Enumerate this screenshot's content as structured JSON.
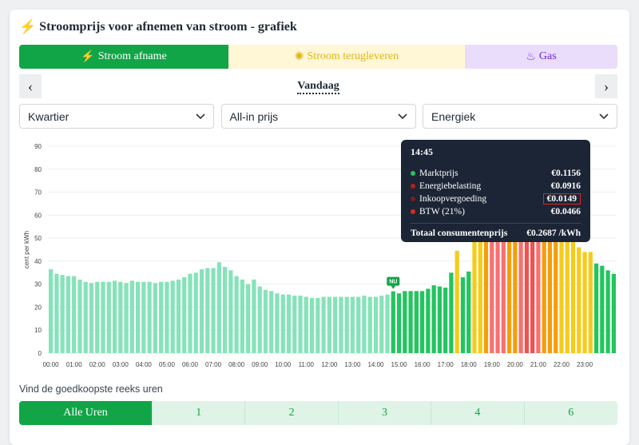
{
  "title": "Stroomprijs voor afnemen van stroom - grafiek",
  "tabs": [
    {
      "label": "Stroom afname",
      "icon": "bolt-icon"
    },
    {
      "label": "Stroom terugleveren",
      "icon": "sun-icon"
    },
    {
      "label": "Gas",
      "icon": "flame-icon"
    }
  ],
  "date_nav": {
    "label": "Vandaag",
    "prev": "‹",
    "next": "›"
  },
  "selects": [
    {
      "value": "Kwartier"
    },
    {
      "value": "All-in prijs"
    },
    {
      "value": "Energiek"
    }
  ],
  "tooltip": {
    "time": "14:45",
    "rows": [
      {
        "name": "Marktprijs",
        "value": "€0.1156",
        "color": "#22c55e"
      },
      {
        "name": "Energiebelasting",
        "value": "€0.0916",
        "color": "#b91c1c"
      },
      {
        "name": "Inkoopvergoeding",
        "value": "€0.0149",
        "color": "#7f1d1d"
      },
      {
        "name": "BTW (21%)",
        "value": "€0.0466",
        "color": "#dc2626"
      }
    ],
    "total_label": "Totaal consumentenprijs",
    "total_value": "€0.2687 /kWh"
  },
  "now_marker": "NU",
  "cheap_label": "Vind de goedkoopste reeks uren",
  "hour_buttons": [
    "Alle Uren",
    "1",
    "2",
    "3",
    "4",
    "6"
  ],
  "chart_data": {
    "type": "bar",
    "ylabel": "cent per kWh",
    "ylim": [
      0,
      90
    ],
    "yticks": [
      0,
      10,
      20,
      30,
      40,
      50,
      60,
      70,
      80,
      90
    ],
    "xticks": [
      "00:00",
      "01:00",
      "02:00",
      "03:00",
      "04:00",
      "05:00",
      "06:00",
      "07:00",
      "08:00",
      "09:00",
      "10:00",
      "11:00",
      "12:00",
      "13:00",
      "14:00",
      "15:00",
      "16:00",
      "17:00",
      "18:00",
      "19:00",
      "20:00",
      "21:00",
      "22:00",
      "23:00"
    ],
    "interval": "kwartier",
    "now_index": 59,
    "colors": {
      "past": "#86e3b9",
      "future": "#22c55e",
      "yellow": "#f5cc1b",
      "orange": "#f59e0b",
      "coral": "#f87171",
      "red": "#ef5350"
    },
    "values": [
      36.5,
      34.5,
      34,
      33.5,
      33.5,
      32,
      31,
      30.5,
      31,
      31,
      31,
      31.5,
      31,
      30.5,
      31.5,
      31,
      31,
      31,
      30.5,
      31,
      31,
      31.5,
      32,
      33,
      34.5,
      35,
      36.5,
      37,
      37,
      39.5,
      37.5,
      36,
      33.5,
      32,
      30,
      32,
      29,
      27.5,
      27,
      26,
      25.5,
      25.5,
      25,
      25,
      24.5,
      24,
      24,
      24.5,
      24.5,
      24.5,
      24.5,
      24.5,
      24.5,
      24.5,
      25,
      24.5,
      24.5,
      25,
      25.5,
      26.9,
      26,
      27,
      27,
      27,
      27,
      28,
      29.5,
      29,
      28.5,
      35,
      44.5,
      33,
      35.5,
      52,
      56,
      62,
      70,
      73,
      70,
      67,
      67,
      72,
      75,
      76,
      72,
      66,
      62,
      63,
      58,
      55,
      50,
      46,
      44,
      44,
      39,
      38,
      36,
      34.5
    ]
  }
}
